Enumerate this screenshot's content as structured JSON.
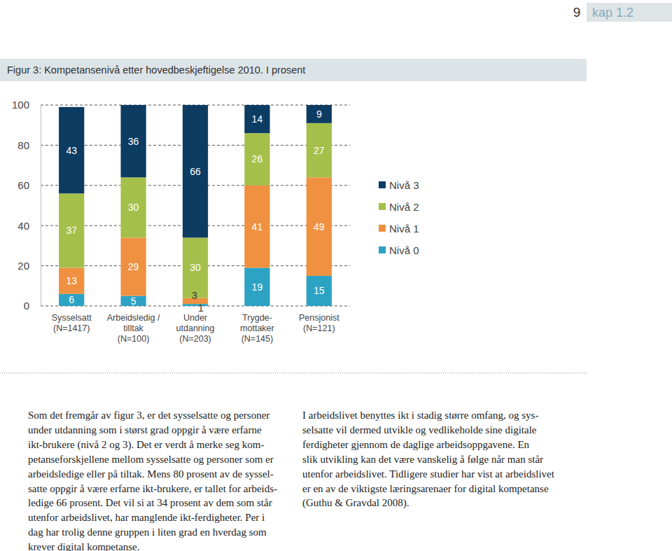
{
  "chart_data": {
    "type": "bar",
    "title": "Figur 3: Kompetansenivå etter hovedbeskjeftigelse 2010. I prosent",
    "categories": [
      "Sysselsatt\n(N=1417)",
      "Arbeidsledig /\ntilltak\n(N=100)",
      "Under\nutdanning\n(N=203)",
      "Trygde-\nmottaker\n(N=145)",
      "Pensjonist\n(N=121)"
    ],
    "series": [
      {
        "name": "Nivå 0",
        "color": "#2da3c4",
        "values": [
          6,
          5,
          1,
          19,
          15
        ]
      },
      {
        "name": "Nivå 1",
        "color": "#ef9140",
        "values": [
          13,
          29,
          3,
          41,
          49
        ]
      },
      {
        "name": "Nivå 2",
        "color": "#a5bf4b",
        "values": [
          37,
          30,
          30,
          26,
          27
        ]
      },
      {
        "name": "Nivå 3",
        "color": "#0d3c63",
        "values": [
          43,
          36,
          66,
          14,
          9
        ]
      }
    ],
    "stacked": true,
    "data_labels": true,
    "grid": true,
    "legend": "right",
    "ylim": [
      0,
      100
    ],
    "yticks": [
      0,
      20,
      40,
      60,
      80,
      100
    ]
  },
  "page": {
    "page_number": "9",
    "chapter": "kap 1.2",
    "text_columns": [
      [
        "Som det fremgår av figur 3, er det sysselsatte og personer",
        "under utdanning som i størst grad oppgir å være erfarne",
        "ikt-brukere (nivå 2 og 3). Det er verdt å merke seg kom-",
        "petanseforskjellene mellom sysselsatte og personer som er",
        "arbeidsledige eller på tiltak. Mens 80 prosent av de syssel-",
        "satte oppgir å være erfarne ikt-brukere, er tallet for arbeids-",
        "ledige 66 prosent. Det vil si at 34 prosent av dem som står",
        "utenfor arbeidslivet, har manglende ikt-ferdigheter. Per i",
        "dag har trolig denne gruppen i liten grad en hverdag som",
        "krever digital kompetanse."
      ],
      [
        "I arbeidslivet benyttes ikt i stadig større omfang, og sys-",
        "selsatte vil dermed utvikle og vedlikeholde sine digitale",
        "ferdigheter gjennom de daglige arbeidsoppgavene. En",
        "slik utvikling kan det være vanskelig å følge når man står",
        "utenfor arbeidslivet. Tidligere studier har vist at arbeidslivet",
        "er en av de viktigste læringsarenaer for digital kompetanse",
        "(Guthu & Gravdal 2008)."
      ]
    ]
  }
}
